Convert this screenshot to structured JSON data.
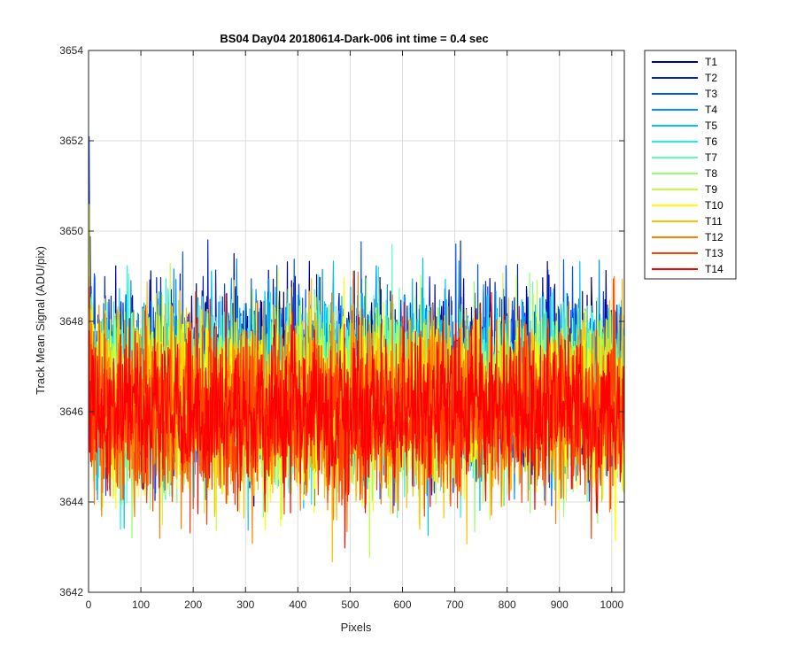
{
  "chart_data": {
    "type": "line",
    "title": "BS04 Day04 20180614-Dark-006 int time = 0.4 sec",
    "xlabel": "Pixels",
    "ylabel": "Track Mean Signal (ADU/pix)",
    "xlim": [
      0,
      1024
    ],
    "ylim": [
      3642,
      3654
    ],
    "xticks": [
      0,
      100,
      200,
      300,
      400,
      500,
      600,
      700,
      800,
      900,
      1000
    ],
    "yticks": [
      3642,
      3644,
      3646,
      3648,
      3650,
      3652,
      3654
    ],
    "grid": true,
    "legend_position": "outside-top-right",
    "noise_model": {
      "points_per_series": 1024,
      "x_start": 1,
      "x_end": 1024
    },
    "series": [
      {
        "name": "T1",
        "color": "#00008f",
        "mean": 3646.9,
        "sd": 0.95,
        "start_value": 3650.8
      },
      {
        "name": "T2",
        "color": "#0020c8",
        "mean": 3646.8,
        "sd": 0.95,
        "start_value": 3652.1
      },
      {
        "name": "T3",
        "color": "#0050ff",
        "mean": 3646.7,
        "sd": 0.95,
        "start_value": 3650.0
      },
      {
        "name": "T4",
        "color": "#0090ff",
        "mean": 3646.6,
        "sd": 0.95,
        "start_value": 3649.8
      },
      {
        "name": "T5",
        "color": "#00c0ff",
        "mean": 3646.6,
        "sd": 0.95,
        "start_value": 3649.5
      },
      {
        "name": "T6",
        "color": "#20f0f0",
        "mean": 3646.5,
        "sd": 0.95,
        "start_value": 3649.5
      },
      {
        "name": "T7",
        "color": "#60ffc0",
        "mean": 3646.4,
        "sd": 0.95,
        "start_value": 3649.2
      },
      {
        "name": "T8",
        "color": "#90ff70",
        "mean": 3646.3,
        "sd": 0.95,
        "start_value": 3649.0
      },
      {
        "name": "T9",
        "color": "#c0ff40",
        "mean": 3646.3,
        "sd": 0.95,
        "start_value": 3649.5
      },
      {
        "name": "T10",
        "color": "#ffff00",
        "mean": 3646.2,
        "sd": 0.95,
        "start_value": 3650.6
      },
      {
        "name": "T11",
        "color": "#ffc000",
        "mean": 3646.1,
        "sd": 0.95,
        "start_value": 3649.0
      },
      {
        "name": "T12",
        "color": "#ff8000",
        "mean": 3646.0,
        "sd": 0.95,
        "start_value": 3648.6
      },
      {
        "name": "T13",
        "color": "#ff4000",
        "mean": 3645.9,
        "sd": 0.95,
        "start_value": 3648.3
      },
      {
        "name": "T14",
        "color": "#ff0000",
        "mean": 3646.0,
        "sd": 0.85,
        "start_value": 3647.8
      }
    ]
  }
}
